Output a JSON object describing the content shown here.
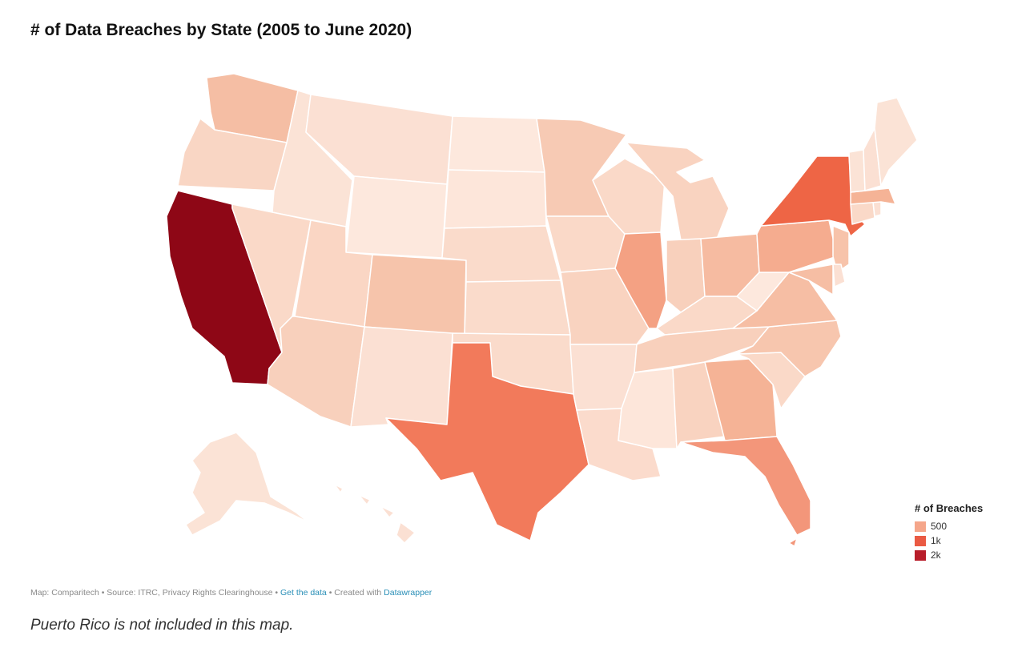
{
  "title": "# of Data Breaches by State (2005 to June 2020)",
  "legend": {
    "title": "# of Breaches",
    "items": [
      {
        "label": "500",
        "color": "#f5a68a"
      },
      {
        "label": "1k",
        "color": "#ea5a43"
      },
      {
        "label": "2k",
        "color": "#b81d2a"
      }
    ]
  },
  "footer": {
    "prefix": "Map: Comparitech • Source: ITRC, Privacy Rights Clearinghouse • ",
    "get_data": "Get the data",
    "middle": " • Created with ",
    "datawrapper": "Datawrapper"
  },
  "note": "Puerto Rico is not included in this map.",
  "colors": {
    "very_light": "#fbe3d6",
    "light": "#f9d6c4",
    "light_mid": "#f7c6ae",
    "mid": "#f4ab8c",
    "darker_mid": "#f28b6d",
    "texas": "#f27a5b",
    "new_york": "#ee6545",
    "california": "#8e0716"
  },
  "states": [
    {
      "code": "WA",
      "color": "#f5bea4"
    },
    {
      "code": "OR",
      "color": "#f9d6c4"
    },
    {
      "code": "CA",
      "color": "#8e0716"
    },
    {
      "code": "ID",
      "color": "#fbe3d6"
    },
    {
      "code": "NV",
      "color": "#fad9c8"
    },
    {
      "code": "MT",
      "color": "#fbe0d3"
    },
    {
      "code": "WY",
      "color": "#fde8dd"
    },
    {
      "code": "UT",
      "color": "#fad6c4"
    },
    {
      "code": "AZ",
      "color": "#f8d0bc"
    },
    {
      "code": "CO",
      "color": "#f6c4ab"
    },
    {
      "code": "NM",
      "color": "#fbe0d3"
    },
    {
      "code": "ND",
      "color": "#fde8dd"
    },
    {
      "code": "SD",
      "color": "#fde6da"
    },
    {
      "code": "NE",
      "color": "#fadbcb"
    },
    {
      "code": "KS",
      "color": "#fadbcb"
    },
    {
      "code": "OK",
      "color": "#fadbcb"
    },
    {
      "code": "TX",
      "color": "#f27a5b"
    },
    {
      "code": "MN",
      "color": "#f7cab4"
    },
    {
      "code": "IA",
      "color": "#fad9c8"
    },
    {
      "code": "MO",
      "color": "#f9d3c0"
    },
    {
      "code": "AR",
      "color": "#fbe0d3"
    },
    {
      "code": "LA",
      "color": "#fbdbcc"
    },
    {
      "code": "WI",
      "color": "#fad9c8"
    },
    {
      "code": "IL",
      "color": "#f4a183"
    },
    {
      "code": "MI",
      "color": "#f9d3c0"
    },
    {
      "code": "IN",
      "color": "#f8d0bc"
    },
    {
      "code": "OH",
      "color": "#f6bba1"
    },
    {
      "code": "KY",
      "color": "#fad9c8"
    },
    {
      "code": "TN",
      "color": "#f8d0bc"
    },
    {
      "code": "MS",
      "color": "#fde6da"
    },
    {
      "code": "AL",
      "color": "#f9d3c0"
    },
    {
      "code": "GA",
      "color": "#f5b396"
    },
    {
      "code": "FL",
      "color": "#f3967a"
    },
    {
      "code": "SC",
      "color": "#fad9c8"
    },
    {
      "code": "NC",
      "color": "#f7c6ae"
    },
    {
      "code": "VA",
      "color": "#f6bea4"
    },
    {
      "code": "WV",
      "color": "#fde8dd"
    },
    {
      "code": "PA",
      "color": "#f5ac8f"
    },
    {
      "code": "NY",
      "color": "#ee6545"
    },
    {
      "code": "NJ",
      "color": "#f7c3aa"
    },
    {
      "code": "MD",
      "color": "#f6bea4"
    },
    {
      "code": "DE",
      "color": "#fbe0d3"
    },
    {
      "code": "CT",
      "color": "#fad9c8"
    },
    {
      "code": "MA",
      "color": "#f5b396"
    },
    {
      "code": "RI",
      "color": "#fbe0d3"
    },
    {
      "code": "VT",
      "color": "#fbe3d6"
    },
    {
      "code": "NH",
      "color": "#fbe0d3"
    },
    {
      "code": "ME",
      "color": "#fbe3d6"
    },
    {
      "code": "AK",
      "color": "#fbe3d6"
    },
    {
      "code": "HI",
      "color": "#fbe0d3"
    }
  ]
}
